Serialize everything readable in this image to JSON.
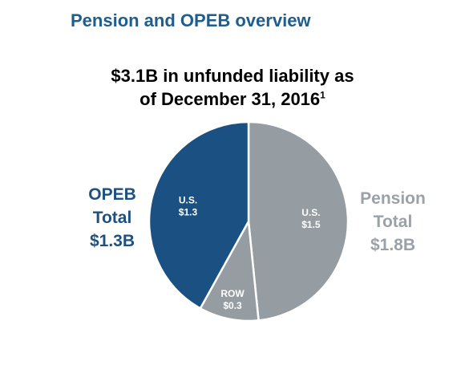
{
  "header": {
    "title": "Pension and OPEB overview"
  },
  "chart_data": {
    "type": "pie",
    "title_line1": "$3.1B in unfunded liability as",
    "title_line2": "of December 31, 2016",
    "title_footnote": "1",
    "slices": [
      {
        "group": "Pension",
        "label": "U.S.",
        "value_label": "$1.5",
        "value": 1.5,
        "color": "#959ca2"
      },
      {
        "group": "Pension",
        "label": "ROW",
        "value_label": "$0.3",
        "value": 0.3,
        "color": "#959ca2"
      },
      {
        "group": "OPEB",
        "label": "U.S.",
        "value_label": "$1.3",
        "value": 1.3,
        "color": "#1a5082"
      }
    ],
    "groups": [
      {
        "name": "OPEB",
        "line2": "Total",
        "total_label": "$1.3B",
        "total": 1.3,
        "color": "#1f5180"
      },
      {
        "name": "Pension",
        "line2": "Total",
        "total_label": "$1.8B",
        "total": 1.8,
        "color": "#9aa2a8"
      }
    ]
  }
}
